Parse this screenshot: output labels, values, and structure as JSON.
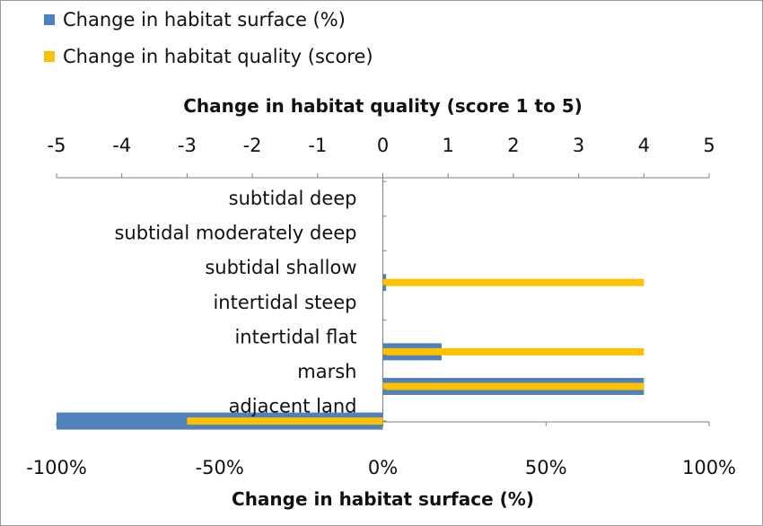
{
  "legend": {
    "surface_label": "Change in habitat surface (%)",
    "quality_label": "Change in habitat quality (score)"
  },
  "colors": {
    "surface": "#4f81bd",
    "quality": "#ffc000",
    "axis": "#7f7f7f",
    "grid": "#d0d0d0"
  },
  "chart_data": {
    "type": "bar",
    "orientation": "horizontal",
    "categories": [
      "subtidal deep",
      "subtidal moderately deep",
      "subtidal shallow",
      "intertidal steep",
      "intertidal flat",
      "marsh",
      "adjacent land"
    ],
    "series": [
      {
        "name": "Change in habitat surface (%)",
        "axis": "bottom",
        "values": [
          0,
          0,
          1,
          0,
          18,
          80,
          -100
        ]
      },
      {
        "name": "Change in habitat quality (score)",
        "axis": "top",
        "values": [
          0,
          0,
          4,
          0,
          4,
          4,
          -3
        ]
      }
    ],
    "top_axis": {
      "title": "Change in habitat quality (score 1 to 5)",
      "range": [
        -5,
        5
      ],
      "ticks": [
        "-5",
        "-4",
        "-3",
        "-2",
        "-1",
        "0",
        "1",
        "2",
        "3",
        "4",
        "5"
      ]
    },
    "bottom_axis": {
      "title": "Change in habitat surface (%)",
      "range": [
        -100,
        100
      ],
      "ticks": [
        "-100%",
        "-50%",
        "0%",
        "50%",
        "100%"
      ]
    },
    "legend_position": "top-left"
  }
}
